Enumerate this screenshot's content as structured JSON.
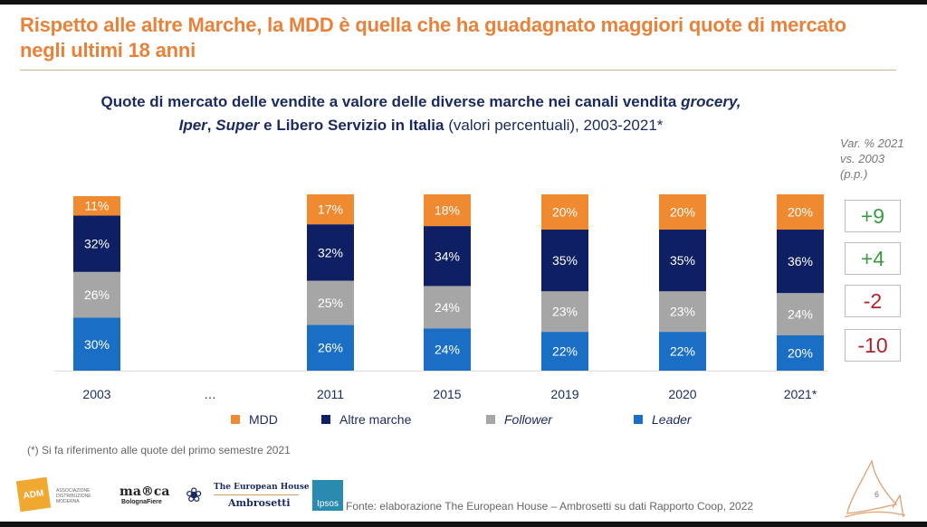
{
  "slide": {
    "title": "Rispetto alle altre Marche, la MDD è quella che ha guadagnato maggiori quote di mercato negli ultimi 18 anni",
    "page_number": "6"
  },
  "chart_title": {
    "part1": "Quote di mercato delle vendite a valore delle diverse marche nei canali vendita ",
    "part2_italic": "grocery,",
    "part3_italic": "Iper",
    "part4": ", ",
    "part5_italic": "Super",
    "part6": " e Libero Servizio in Italia",
    "part7_plain": " (valori percentuali), 2003-2021*"
  },
  "variation": {
    "header": "Var. % 2021 vs. 2003 (p.p.)",
    "values": [
      {
        "series": "MDD",
        "label": "+9",
        "color": "#3a9a3f"
      },
      {
        "series": "Altre marche",
        "label": "+4",
        "color": "#3a9a3f"
      },
      {
        "series": "Follower",
        "label": "-2",
        "color": "#b0222a"
      },
      {
        "series": "Leader",
        "label": "-10",
        "color": "#b0222a"
      }
    ]
  },
  "footnote": "(*) Si fa riferimento alle quote del primo semestre 2021",
  "source": "Fonte: elaborazione The European House – Ambrosetti su dati Rapporto Coop, 2022",
  "logos": {
    "adm": "ADM",
    "adm_text": "ASSOCIAZIONE DISTRIBUZIONE MODERNA",
    "marca": "ma®ca",
    "marca_sub": "BolognaFiere",
    "teh_line1": "The European House",
    "teh_line2": "Ambrosetti",
    "ipsos": "Ipsos"
  },
  "chart_data": {
    "type": "bar",
    "stacked": true,
    "title": "Quote di mercato delle vendite a valore delle diverse marche nei canali vendita grocery, Iper, Super e Libero Servizio in Italia (valori percentuali), 2003-2021*",
    "xlabel": "",
    "ylabel": "",
    "categories": [
      "2003",
      "…",
      "2011",
      "2015",
      "2019",
      "2020",
      "2021*"
    ],
    "gap_category": "…",
    "ylim": [
      0,
      100
    ],
    "grid": false,
    "legend_position": "bottom",
    "series": [
      {
        "name": "Leader",
        "italic": true,
        "color": "#1a6fc4",
        "values": [
          30,
          null,
          26,
          24,
          22,
          22,
          20
        ]
      },
      {
        "name": "Follower",
        "italic": true,
        "color": "#a6a6a6",
        "values": [
          26,
          null,
          25,
          24,
          23,
          23,
          24
        ]
      },
      {
        "name": "Altre marche",
        "italic": false,
        "color": "#0f1f63",
        "values": [
          32,
          null,
          32,
          34,
          35,
          35,
          36
        ]
      },
      {
        "name": "MDD",
        "italic": false,
        "color": "#f08a30",
        "values": [
          11,
          null,
          17,
          18,
          20,
          20,
          20
        ]
      }
    ],
    "legend_order": [
      "MDD",
      "Altre marche",
      "Follower",
      "Leader"
    ],
    "value_suffix": "%"
  }
}
